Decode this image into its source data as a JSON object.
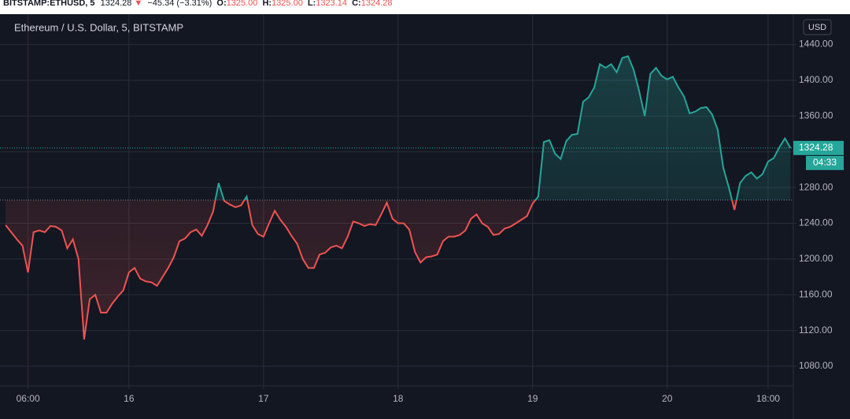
{
  "header": {
    "symbol": "BITSTAMP:ETHUSD, 5",
    "price": "1324.28",
    "arrow": "▼",
    "change": "−45.34 (−3.31%)",
    "o_label": "O:",
    "o": "1325.00",
    "h_label": "H:",
    "h": "1325.00",
    "l_label": "L:",
    "l": "1323.14",
    "c_label": "C:",
    "c": "1324.28"
  },
  "chart_data": {
    "type": "baseline",
    "title": "Ethereum / U.S. Dollar, 5, BITSTAMP",
    "currency": "USD",
    "x": [
      2,
      3,
      4,
      5,
      6,
      7,
      8,
      9,
      10,
      11,
      12,
      13,
      14,
      15,
      16,
      17,
      18,
      19,
      20,
      21,
      22,
      23,
      24,
      25,
      26,
      27,
      28,
      29,
      30,
      31,
      32,
      33,
      34,
      35,
      36,
      37,
      38,
      39,
      40,
      41,
      42,
      43,
      44,
      45,
      46,
      47,
      48,
      49,
      50,
      51,
      52,
      53,
      54,
      55,
      56,
      57,
      58,
      59,
      60,
      61,
      62,
      63,
      64,
      65,
      66,
      67,
      68,
      69,
      70,
      71,
      72,
      73,
      74,
      75,
      76,
      77,
      78,
      79,
      80,
      81,
      82,
      83,
      84,
      85,
      86,
      87,
      88,
      89,
      90,
      91,
      92,
      93,
      94,
      95,
      96,
      97,
      98,
      99,
      100,
      101,
      102,
      103,
      104,
      105,
      106,
      107,
      108,
      109,
      110,
      111,
      112,
      113,
      114,
      115,
      116,
      117,
      118,
      119,
      120,
      121,
      122,
      123,
      124,
      125,
      126,
      127,
      128,
      129,
      130,
      131,
      132,
      133,
      134,
      135,
      136,
      137,
      138,
      139,
      140,
      141,
      142
    ],
    "values": [
      1238,
      1230,
      1222,
      1215,
      1185,
      1230,
      1232,
      1230,
      1237,
      1236,
      1232,
      1212,
      1222,
      1200,
      1110,
      1155,
      1160,
      1140,
      1140,
      1150,
      1158,
      1165,
      1185,
      1190,
      1178,
      1175,
      1174,
      1170,
      1180,
      1190,
      1202,
      1220,
      1223,
      1230,
      1233,
      1226,
      1238,
      1253,
      1285,
      1265,
      1261,
      1258,
      1260,
      1270,
      1238,
      1228,
      1225,
      1240,
      1254,
      1244,
      1236,
      1226,
      1217,
      1200,
      1190,
      1190,
      1205,
      1207,
      1213,
      1215,
      1212,
      1225,
      1242,
      1240,
      1237,
      1239,
      1238,
      1250,
      1263,
      1245,
      1240,
      1240,
      1233,
      1208,
      1196,
      1202,
      1203,
      1205,
      1220,
      1225,
      1225,
      1227,
      1232,
      1245,
      1250,
      1240,
      1236,
      1227,
      1228,
      1234,
      1236,
      1240,
      1244,
      1248,
      1262,
      1270,
      1331,
      1333,
      1318,
      1312,
      1332,
      1339,
      1340,
      1376,
      1381,
      1392,
      1418,
      1414,
      1418,
      1409,
      1425,
      1427,
      1412,
      1388,
      1360,
      1407,
      1414,
      1405,
      1401,
      1404,
      1392,
      1382,
      1363,
      1365,
      1369,
      1370,
      1362,
      1345,
      1302,
      1280,
      1255,
      1285,
      1293,
      1297,
      1290,
      1295,
      1309,
      1313,
      1325,
      1335,
      1324.28
    ],
    "baseline": 1266,
    "up_color": "#26a69a",
    "down_color": "#ef5350",
    "last_price": {
      "value": 1324.28,
      "label": "1324.28"
    },
    "countdown": "04:33",
    "xlim": [
      1,
      142.5
    ],
    "xticks": [
      {
        "value": 6,
        "label": "06:00"
      },
      {
        "value": 24,
        "label": "16"
      },
      {
        "value": 48,
        "label": "17"
      },
      {
        "value": 72,
        "label": "18"
      },
      {
        "value": 96,
        "label": "19"
      },
      {
        "value": 120,
        "label": "20"
      },
      {
        "value": 138,
        "label": "18:00"
      }
    ],
    "ylim": [
      1058,
      1474
    ],
    "yticks": [
      {
        "value": 1080,
        "label": "1080.00"
      },
      {
        "value": 1120,
        "label": "1120.00"
      },
      {
        "value": 1160,
        "label": "1160.00"
      },
      {
        "value": 1200,
        "label": "1200.00"
      },
      {
        "value": 1240,
        "label": "1240.00"
      },
      {
        "value": 1280,
        "label": "1280.00"
      },
      {
        "value": 1320,
        "label": "1320.00"
      },
      {
        "value": 1360,
        "label": "1360.00"
      },
      {
        "value": 1400,
        "label": "1400.00"
      },
      {
        "value": 1440,
        "label": "1440.00"
      }
    ],
    "grid": true
  }
}
